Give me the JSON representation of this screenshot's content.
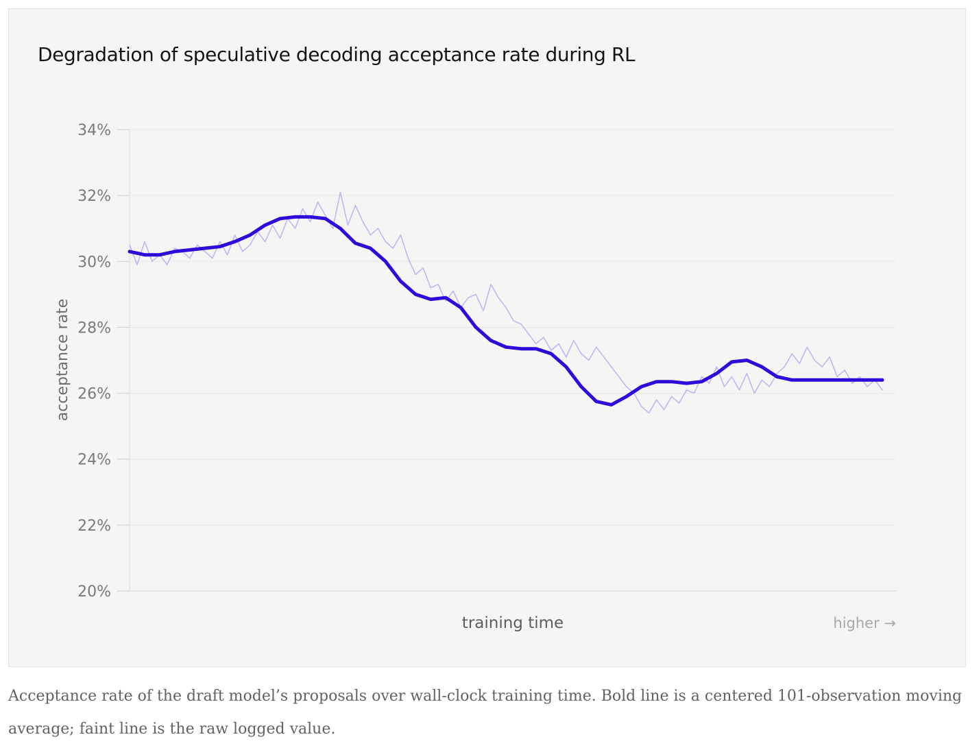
{
  "chart_data": {
    "type": "line",
    "title": "Degradation of speculative decoding acceptance rate during RL",
    "xlabel": "training time",
    "x_hint": "higher →",
    "ylabel": "acceptance rate",
    "ylim": [
      20,
      34
    ],
    "y_ticks": [
      "20%",
      "22%",
      "24%",
      "26%",
      "28%",
      "30%",
      "32%",
      "34%"
    ],
    "grid": true,
    "x_range": [
      0,
      100
    ],
    "series": [
      {
        "role": "raw",
        "color": "#b9b0f3",
        "x": [
          0,
          1,
          2,
          3,
          4,
          5,
          6,
          7,
          8,
          9,
          10,
          11,
          12,
          13,
          14,
          15,
          16,
          17,
          18,
          19,
          20,
          21,
          22,
          23,
          24,
          25,
          26,
          27,
          28,
          29,
          30,
          31,
          32,
          33,
          34,
          35,
          36,
          37,
          38,
          39,
          40,
          41,
          42,
          43,
          44,
          45,
          46,
          47,
          48,
          49,
          50,
          51,
          52,
          53,
          54,
          55,
          56,
          57,
          58,
          59,
          60,
          61,
          62,
          63,
          64,
          65,
          66,
          67,
          68,
          69,
          70,
          71,
          72,
          73,
          74,
          75,
          76,
          77,
          78,
          79,
          80,
          81,
          82,
          83,
          84,
          85,
          86,
          87,
          88,
          89,
          90,
          91,
          92,
          93,
          94,
          95,
          96,
          97,
          98,
          99,
          100
        ],
        "y": [
          30.5,
          29.9,
          30.6,
          30.0,
          30.2,
          29.9,
          30.4,
          30.3,
          30.1,
          30.5,
          30.3,
          30.1,
          30.6,
          30.2,
          30.8,
          30.3,
          30.5,
          30.9,
          30.6,
          31.1,
          30.7,
          31.3,
          31.0,
          31.6,
          31.2,
          31.8,
          31.4,
          31.0,
          32.1,
          31.1,
          31.7,
          31.2,
          30.8,
          31.0,
          30.6,
          30.4,
          30.8,
          30.1,
          29.6,
          29.8,
          29.2,
          29.3,
          28.8,
          29.1,
          28.6,
          28.9,
          29.0,
          28.5,
          29.3,
          28.9,
          28.6,
          28.2,
          28.1,
          27.8,
          27.5,
          27.7,
          27.3,
          27.5,
          27.1,
          27.6,
          27.2,
          27.0,
          27.4,
          27.1,
          26.8,
          26.5,
          26.2,
          26.0,
          25.6,
          25.4,
          25.8,
          25.5,
          25.9,
          25.7,
          26.1,
          26.0,
          26.5,
          26.3,
          26.8,
          26.2,
          26.5,
          26.1,
          26.6,
          26.0,
          26.4,
          26.2,
          26.6,
          26.8,
          27.2,
          26.9,
          27.4,
          27.0,
          26.8,
          27.1,
          26.5,
          26.7,
          26.3,
          26.5,
          26.2,
          26.4,
          26.1
        ]
      },
      {
        "role": "moving-average",
        "color": "#2f0ad8",
        "x": [
          0,
          2,
          4,
          6,
          8,
          10,
          12,
          14,
          16,
          18,
          20,
          22,
          24,
          26,
          28,
          30,
          32,
          34,
          36,
          38,
          40,
          42,
          44,
          46,
          48,
          50,
          52,
          54,
          56,
          58,
          60,
          62,
          64,
          66,
          68,
          70,
          72,
          74,
          76,
          78,
          80,
          82,
          84,
          86,
          88,
          90,
          92,
          94,
          96,
          98,
          100
        ],
        "y": [
          30.3,
          30.2,
          30.2,
          30.3,
          30.35,
          30.4,
          30.45,
          30.6,
          30.8,
          31.1,
          31.3,
          31.35,
          31.35,
          31.3,
          31.0,
          30.55,
          30.4,
          30.0,
          29.4,
          29.0,
          28.85,
          28.9,
          28.6,
          28.0,
          27.6,
          27.4,
          27.35,
          27.35,
          27.2,
          26.8,
          26.2,
          25.75,
          25.65,
          25.9,
          26.2,
          26.35,
          26.35,
          26.3,
          26.35,
          26.6,
          26.95,
          27.0,
          26.8,
          26.5,
          26.4,
          26.4,
          26.4,
          26.4,
          26.4,
          26.4,
          26.4
        ]
      }
    ]
  },
  "caption": "Acceptance rate of the draft model’s proposals over wall-clock training time. Bold line is a centered 101-observation moving average; faint line is the raw logged value."
}
